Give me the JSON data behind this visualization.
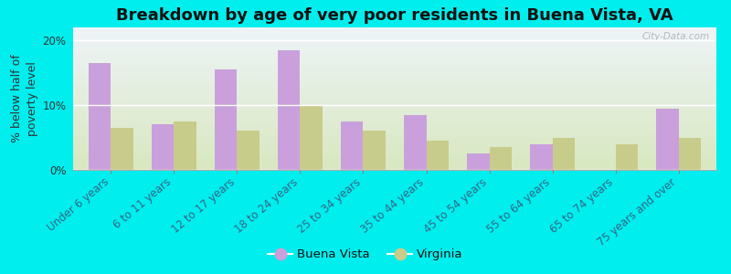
{
  "title": "Breakdown by age of very poor residents in Buena Vista, VA",
  "ylabel": "% below half of\npoverty level",
  "categories": [
    "Under 6 years",
    "6 to 11 years",
    "12 to 17 years",
    "18 to 24 years",
    "25 to 34 years",
    "35 to 44 years",
    "45 to 54 years",
    "55 to 64 years",
    "65 to 74 years",
    "75 years and over"
  ],
  "buena_vista": [
    16.5,
    7.0,
    15.5,
    18.5,
    7.5,
    8.5,
    2.5,
    4.0,
    0.0,
    9.5
  ],
  "virginia": [
    6.5,
    7.5,
    6.0,
    10.0,
    6.0,
    4.5,
    3.5,
    5.0,
    4.0,
    5.0
  ],
  "buena_vista_color": "#c9a0dc",
  "virginia_color": "#c8cc8a",
  "background_outer": "#00eeee",
  "background_plot_bottom": "#d8e8c0",
  "background_plot_top": "#eef4f8",
  "ylim": [
    0,
    22
  ],
  "yticks": [
    0,
    10,
    20
  ],
  "ytick_labels": [
    "0%",
    "10%",
    "20%"
  ],
  "bar_width": 0.35,
  "title_fontsize": 13,
  "label_fontsize": 9,
  "tick_fontsize": 8.5,
  "watermark": "City-Data.com",
  "legend_label1": "Buena Vista",
  "legend_label2": "Virginia"
}
